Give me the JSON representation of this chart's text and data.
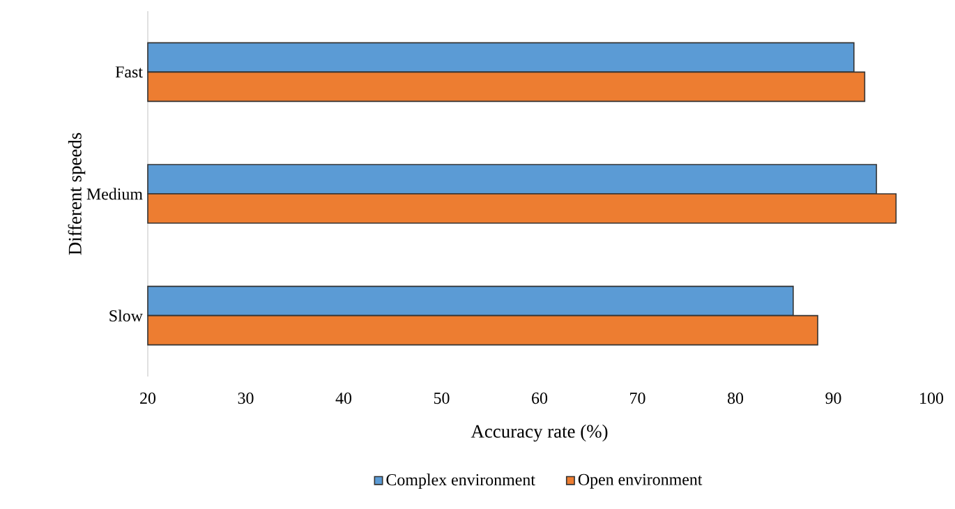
{
  "chart_data": {
    "type": "bar",
    "orientation": "horizontal",
    "xlabel": "Accuracy rate (%)",
    "ylabel": "Different speeds",
    "categories": [
      "Fast",
      "Medium",
      "Slow"
    ],
    "series": [
      {
        "name": "Complex environment",
        "color": "#5b9bd5",
        "values": [
          92.1,
          94.4,
          85.9
        ]
      },
      {
        "name": "Open environment",
        "color": "#ed7d31",
        "values": [
          93.2,
          96.4,
          88.4
        ]
      }
    ],
    "xlim": [
      20,
      100
    ],
    "xticks": [
      20,
      30,
      40,
      50,
      60,
      70,
      80,
      90,
      100
    ],
    "legend": "bottom"
  }
}
